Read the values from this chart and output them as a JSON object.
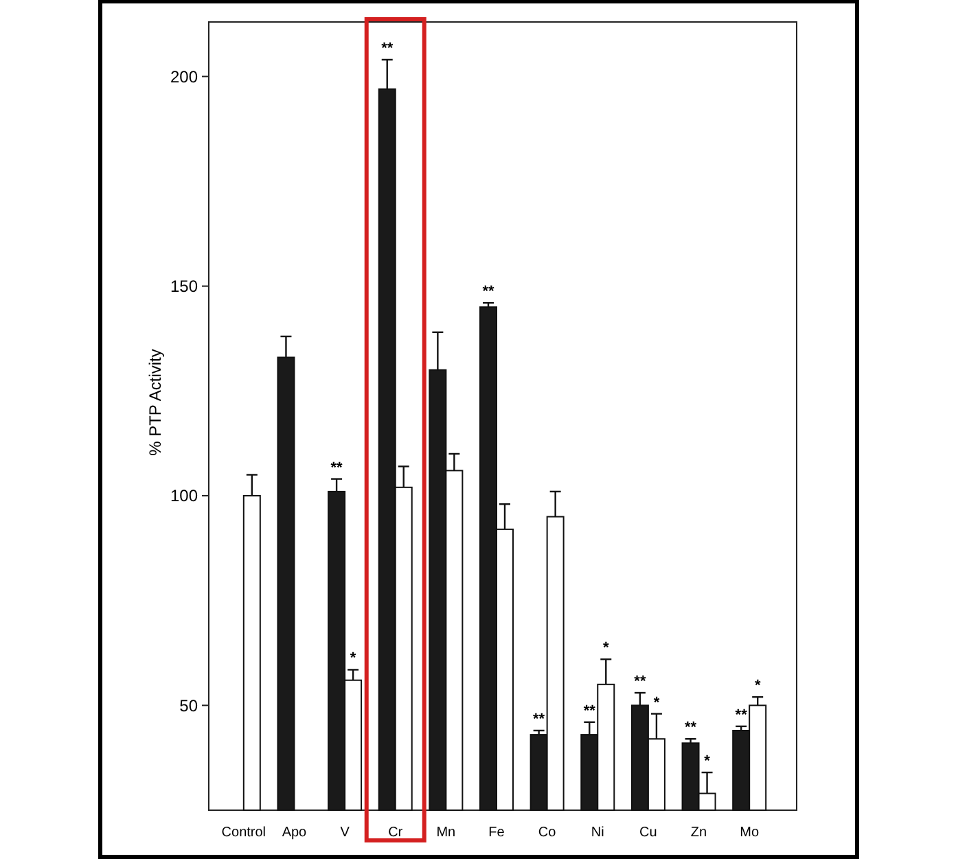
{
  "chart_data": {
    "type": "bar",
    "ylabel": "% PTP Activity",
    "categories": [
      "Control",
      "Apo",
      "V",
      "Cr",
      "Mn",
      "Fe",
      "Co",
      "Ni",
      "Cu",
      "Zn",
      "Mo"
    ],
    "series": [
      {
        "color": "#1a1a1a",
        "values": [
          null,
          133,
          101,
          197,
          130,
          145,
          43,
          43,
          50,
          41,
          44
        ],
        "errors": [
          null,
          5,
          3,
          7,
          9,
          1,
          1,
          3,
          3,
          1,
          1
        ],
        "value_labels": [
          null,
          null,
          "**",
          "**",
          null,
          "**",
          "**",
          "**",
          "**",
          "**",
          "**"
        ]
      },
      {
        "color": "#ffffff",
        "values": [
          100,
          null,
          56,
          102,
          106,
          92,
          95,
          55,
          42,
          29,
          50
        ],
        "errors": [
          5,
          null,
          2.5,
          5,
          4,
          6,
          6,
          6,
          6,
          5,
          2
        ],
        "value_labels": [
          null,
          null,
          "*",
          null,
          null,
          null,
          null,
          "*",
          "*",
          "*",
          "*"
        ]
      }
    ],
    "ylim": [
      25,
      213
    ],
    "yticks": [
      50,
      100,
      150,
      200
    ],
    "grid": false
  }
}
